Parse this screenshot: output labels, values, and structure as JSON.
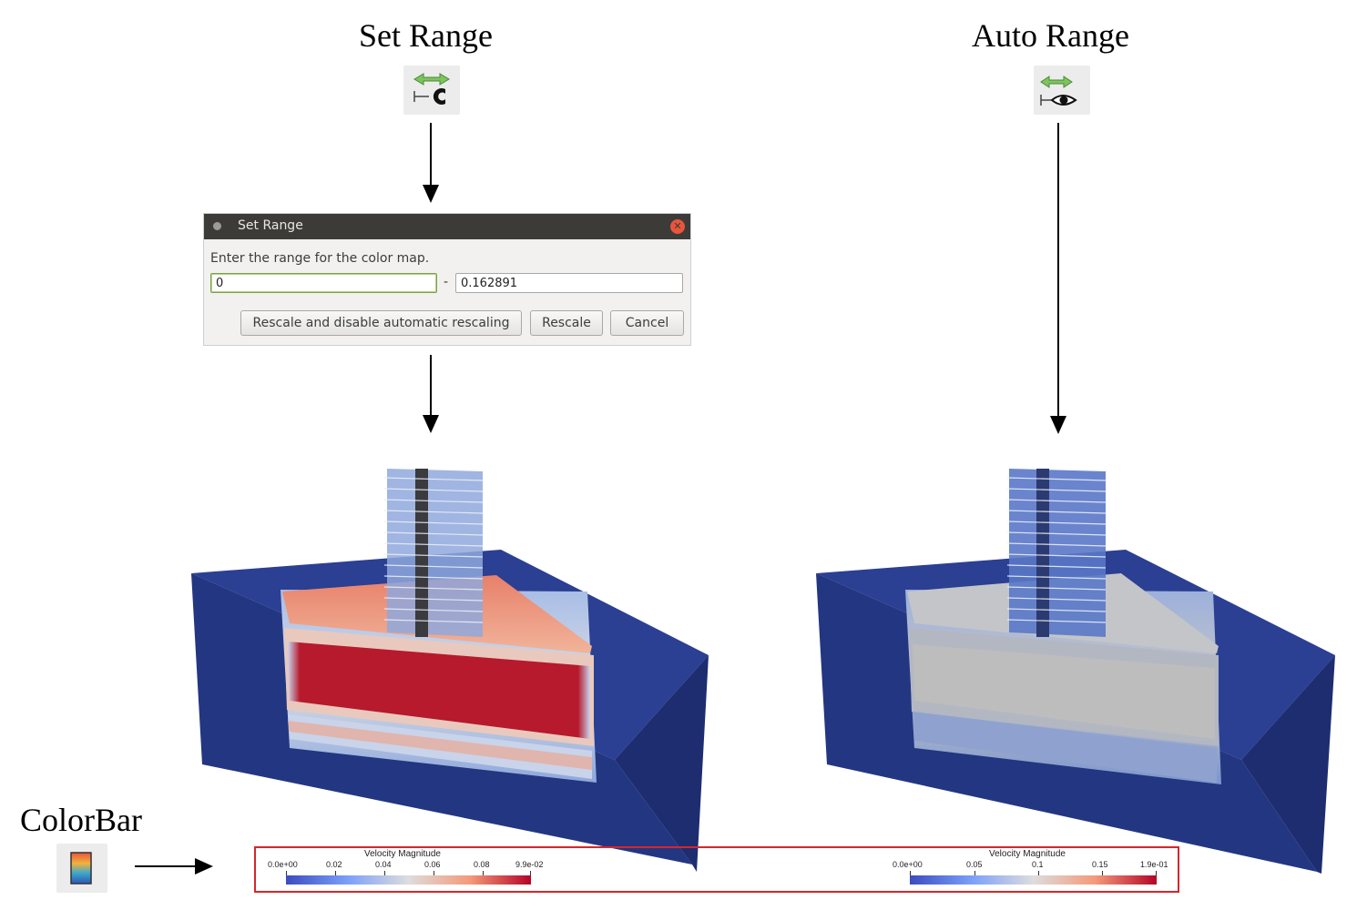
{
  "left": {
    "title": "Set Range",
    "icon": "set-range-icon"
  },
  "right": {
    "title": "Auto Range",
    "icon": "auto-range-icon"
  },
  "dialog": {
    "title": "Set Range",
    "prompt": "Enter the range for the color map.",
    "min_value": "0",
    "separator": "-",
    "max_value": "0.162891",
    "buttons": {
      "rescale_disable": "Rescale and disable automatic rescaling",
      "rescale": "Rescale",
      "cancel": "Cancel"
    }
  },
  "colorbar": {
    "label": "ColorBar",
    "icon": "colorbar-icon",
    "left": {
      "title": "Velocity Magnitude",
      "ticks": [
        "0.0e+00",
        "0.02",
        "0.04",
        "0.06",
        "0.08",
        "9.9e-02"
      ]
    },
    "right": {
      "title": "Velocity Magnitude",
      "ticks": [
        "0.0e+00",
        "0.05",
        "0.1",
        "0.15",
        "1.9e-01"
      ]
    }
  },
  "colors": {
    "domain_blue": "#223580",
    "colormap_low": "#3b4cc0",
    "colormap_mid": "#dddddd",
    "colormap_high": "#b40426",
    "frame_red": "#d6262c"
  }
}
